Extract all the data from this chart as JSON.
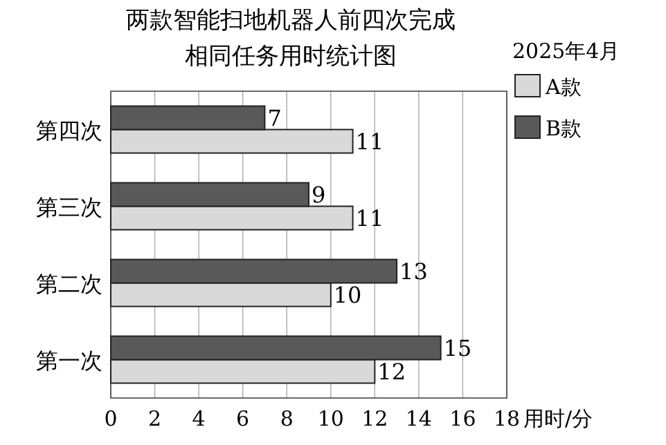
{
  "chart_data": {
    "type": "bar",
    "orientation": "horizontal",
    "title": "两款智能扫地机器人前四次完成",
    "subtitle": "相同任务用时统计图",
    "legend_title": "2025年4月",
    "xlabel": "用时/分",
    "categories": [
      "第四次",
      "第三次",
      "第二次",
      "第一次"
    ],
    "series": [
      {
        "name": "A款",
        "color": "#d9d9d9",
        "values": [
          11,
          11,
          10,
          12
        ]
      },
      {
        "name": "B款",
        "color": "#595959",
        "values": [
          7,
          9,
          13,
          15
        ]
      }
    ],
    "xlim": [
      0,
      18
    ],
    "xticks": [
      0,
      2,
      4,
      6,
      8,
      10,
      12,
      14,
      16,
      18
    ],
    "grid": "x",
    "legend": "top right",
    "data_labels": true
  }
}
